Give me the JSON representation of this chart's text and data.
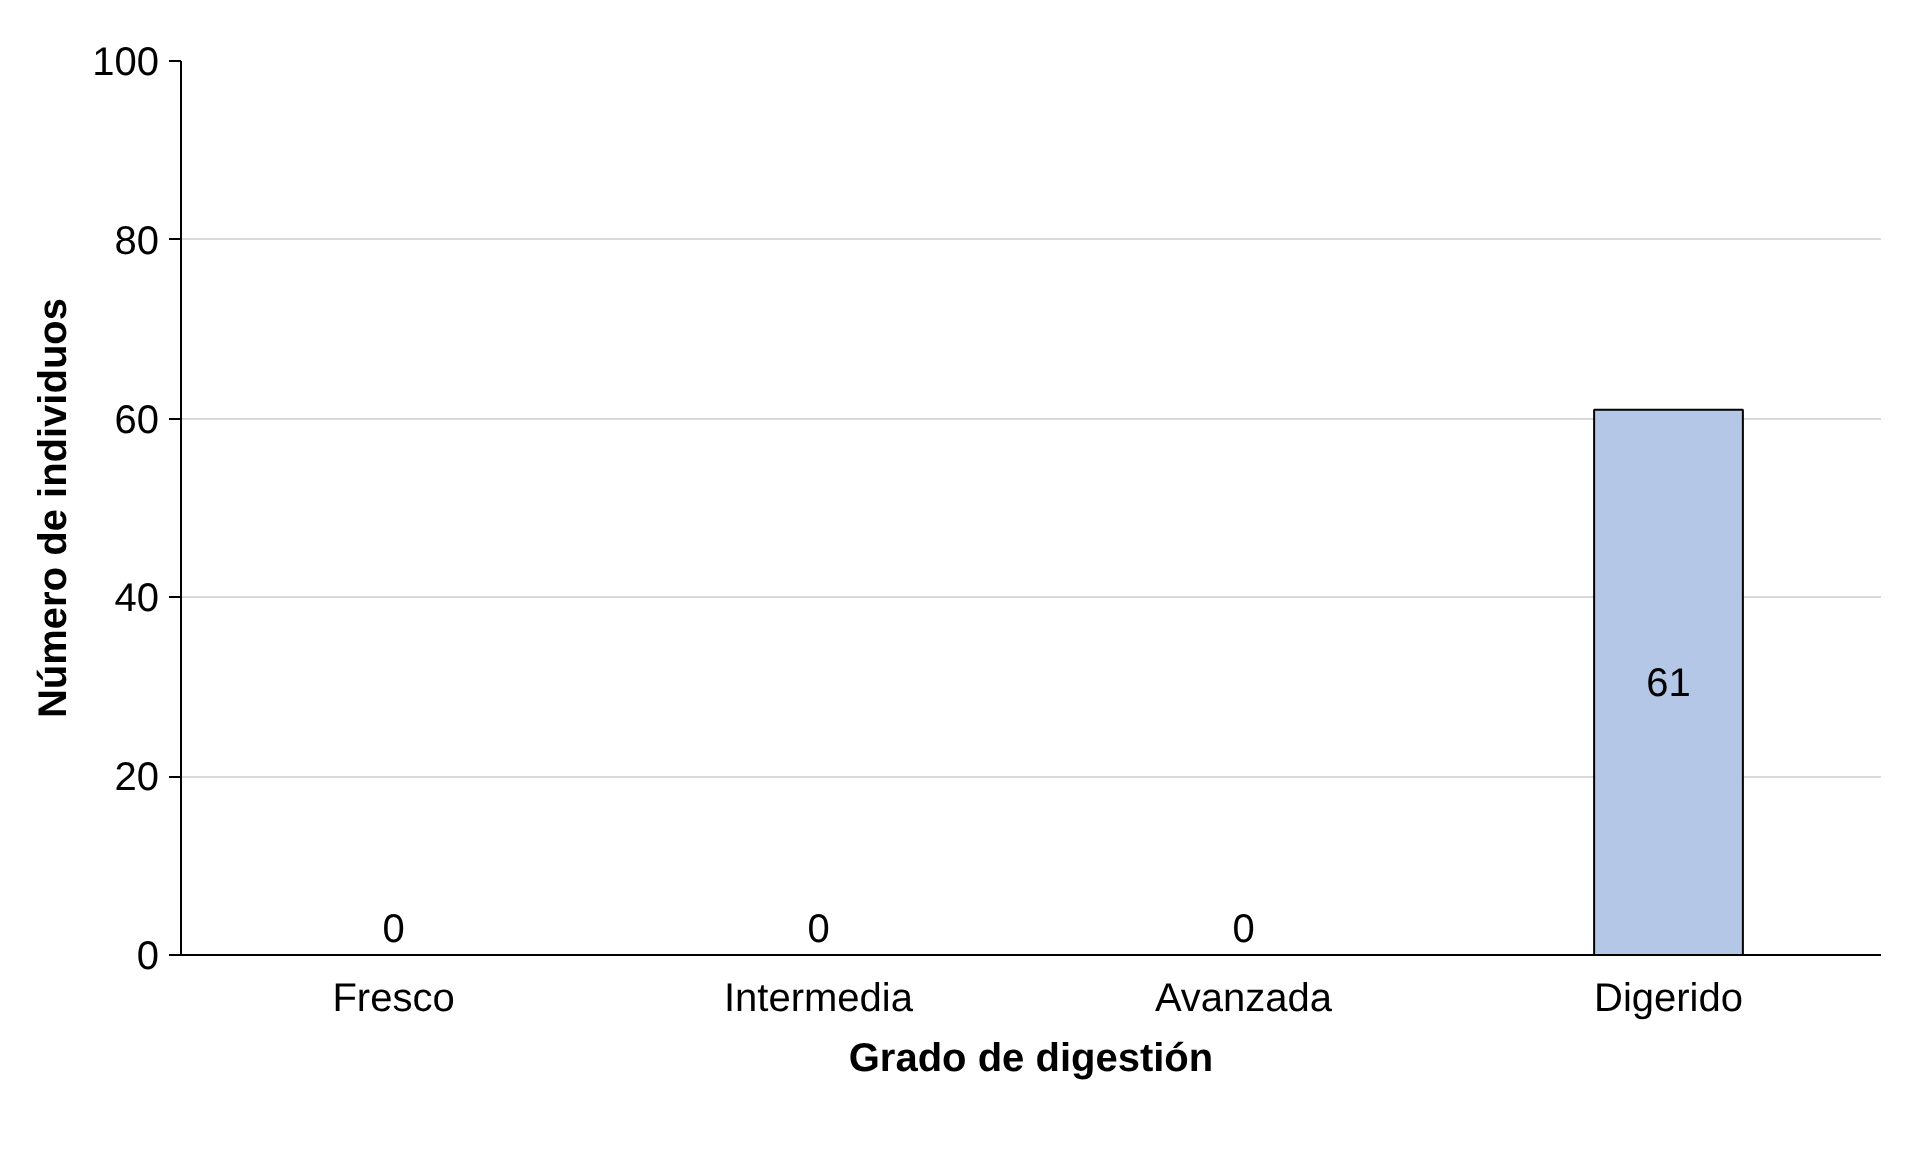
{
  "chart_data": {
    "type": "bar",
    "xlabel": "Grado de digestión",
    "ylabel": "Número de individuos",
    "categories": [
      "Fresco",
      "Intermedia",
      "Avanzada",
      "Digerido"
    ],
    "values": [
      0,
      0,
      0,
      61
    ],
    "color": "#b4c7e7",
    "ylim": [
      0,
      100
    ],
    "yticks": [
      0,
      20,
      40,
      60,
      80,
      100
    ],
    "grid": "y",
    "data_labels": true
  }
}
